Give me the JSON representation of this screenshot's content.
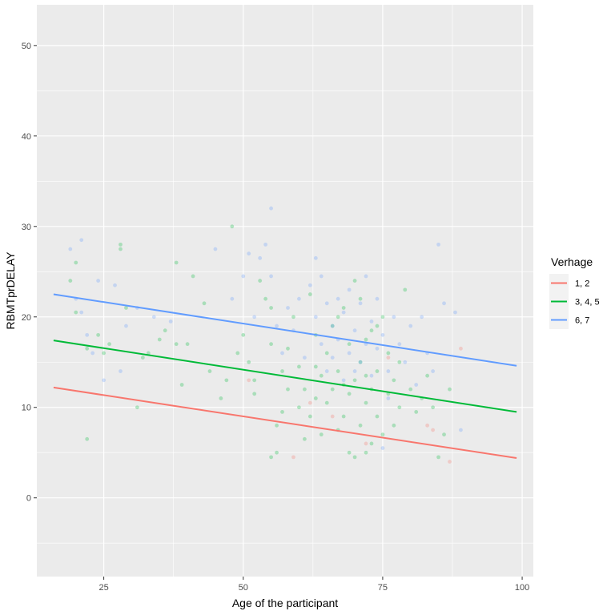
{
  "chart_data": {
    "type": "scatter",
    "title": "",
    "xlabel": "Age of the participant",
    "ylabel": "RBMTprDELAY",
    "xlim": [
      13,
      102
    ],
    "ylim": [
      -8.7,
      54.5
    ],
    "x_ticks": [
      25,
      50,
      75,
      100
    ],
    "x_tick_labels": [
      "25",
      "50",
      "75",
      "100"
    ],
    "y_ticks": [
      0,
      10,
      20,
      30,
      40,
      50
    ],
    "y_tick_labels": [
      "0",
      "10",
      "20",
      "30",
      "40",
      "50"
    ],
    "grid": true,
    "legend": {
      "title": "Verhage",
      "placement": "right"
    },
    "series": [
      {
        "name": "1, 2",
        "color": "#F8766D",
        "trend": {
          "x": [
            16,
            99
          ],
          "y": [
            12.2,
            4.4
          ]
        },
        "points": [
          [
            51,
            13
          ],
          [
            59,
            4.5
          ],
          [
            72,
            6
          ],
          [
            76,
            15.5
          ],
          [
            83,
            8
          ],
          [
            84,
            7.5
          ],
          [
            87,
            4
          ],
          [
            89,
            16.5
          ],
          [
            66,
            9
          ],
          [
            62,
            10.5
          ]
        ]
      },
      {
        "name": "3, 4, 5",
        "color": "#00BA38",
        "trend": {
          "x": [
            16,
            99
          ],
          "y": [
            17.4,
            9.5
          ]
        },
        "points": [
          [
            19,
            24
          ],
          [
            20,
            26
          ],
          [
            20,
            20.5
          ],
          [
            22,
            6.5
          ],
          [
            22,
            16.5
          ],
          [
            24,
            18
          ],
          [
            25,
            16
          ],
          [
            26,
            17
          ],
          [
            28,
            27.5
          ],
          [
            28,
            28
          ],
          [
            29,
            21
          ],
          [
            31,
            10
          ],
          [
            32,
            15.5
          ],
          [
            33,
            16
          ],
          [
            35,
            17.5
          ],
          [
            36,
            18.5
          ],
          [
            38,
            26
          ],
          [
            38,
            17
          ],
          [
            39,
            12.5
          ],
          [
            40,
            17
          ],
          [
            41,
            24.5
          ],
          [
            43,
            21.5
          ],
          [
            44,
            14
          ],
          [
            46,
            11
          ],
          [
            47,
            13
          ],
          [
            48,
            30
          ],
          [
            49,
            16
          ],
          [
            50,
            18
          ],
          [
            51,
            15
          ],
          [
            52,
            13
          ],
          [
            53,
            24
          ],
          [
            54,
            22
          ],
          [
            55,
            4.5
          ],
          [
            55,
            17
          ],
          [
            56,
            5
          ],
          [
            56,
            8
          ],
          [
            57,
            14
          ],
          [
            58,
            12
          ],
          [
            59,
            20
          ],
          [
            60,
            10
          ],
          [
            60,
            14.5
          ],
          [
            61,
            6.5
          ],
          [
            61,
            12
          ],
          [
            62,
            9
          ],
          [
            63,
            11
          ],
          [
            63,
            18
          ],
          [
            64,
            7
          ],
          [
            64,
            13.5
          ],
          [
            65,
            10.5
          ],
          [
            65,
            16
          ],
          [
            66,
            12
          ],
          [
            66,
            19
          ],
          [
            67,
            7.5
          ],
          [
            67,
            14
          ],
          [
            68,
            9
          ],
          [
            68,
            21
          ],
          [
            69,
            5
          ],
          [
            69,
            11.5
          ],
          [
            70,
            4.5
          ],
          [
            70,
            13
          ],
          [
            70,
            24
          ],
          [
            71,
            8
          ],
          [
            71,
            15
          ],
          [
            72,
            5
          ],
          [
            72,
            10.5
          ],
          [
            72,
            17.5
          ],
          [
            73,
            6
          ],
          [
            73,
            12
          ],
          [
            73,
            18.5
          ],
          [
            74,
            9
          ],
          [
            74,
            14
          ],
          [
            75,
            7
          ],
          [
            75,
            20
          ],
          [
            76,
            11.5
          ],
          [
            76,
            16
          ],
          [
            77,
            8
          ],
          [
            77,
            13
          ],
          [
            78,
            10
          ],
          [
            78,
            15
          ],
          [
            79,
            23
          ],
          [
            80,
            12
          ],
          [
            81,
            9.5
          ],
          [
            82,
            11
          ],
          [
            83,
            13.5
          ],
          [
            84,
            10
          ],
          [
            85,
            4.5
          ],
          [
            86,
            7
          ],
          [
            87,
            12
          ],
          [
            55,
            21
          ],
          [
            58,
            16.5
          ],
          [
            62,
            22.5
          ],
          [
            67,
            20
          ],
          [
            69,
            17
          ],
          [
            71,
            22
          ],
          [
            74,
            19
          ],
          [
            52,
            11.5
          ],
          [
            57,
            9.5
          ],
          [
            63,
            14.5
          ],
          [
            68,
            12.5
          ],
          [
            72,
            13.5
          ]
        ]
      },
      {
        "name": "6, 7",
        "color": "#619CFF",
        "trend": {
          "x": [
            16,
            99
          ],
          "y": [
            22.5,
            14.6
          ]
        },
        "points": [
          [
            19,
            27.5
          ],
          [
            20,
            22
          ],
          [
            21,
            28.5
          ],
          [
            21,
            20.5
          ],
          [
            22,
            18
          ],
          [
            23,
            16
          ],
          [
            24,
            24
          ],
          [
            25,
            13
          ],
          [
            27,
            23.5
          ],
          [
            28,
            14
          ],
          [
            29,
            19
          ],
          [
            31,
            21
          ],
          [
            34,
            20
          ],
          [
            37,
            19.5
          ],
          [
            45,
            27.5
          ],
          [
            48,
            22
          ],
          [
            50,
            24.5
          ],
          [
            51,
            27
          ],
          [
            52,
            20
          ],
          [
            53,
            26.5
          ],
          [
            54,
            28
          ],
          [
            55,
            32
          ],
          [
            55,
            24.5
          ],
          [
            56,
            19
          ],
          [
            57,
            16
          ],
          [
            58,
            21
          ],
          [
            59,
            18.5
          ],
          [
            60,
            22
          ],
          [
            61,
            15.5
          ],
          [
            62,
            23.5
          ],
          [
            63,
            26.5
          ],
          [
            63,
            20
          ],
          [
            64,
            17
          ],
          [
            64,
            24.5
          ],
          [
            65,
            14
          ],
          [
            65,
            21.5
          ],
          [
            66,
            19
          ],
          [
            66,
            15.5
          ],
          [
            67,
            22
          ],
          [
            67,
            17.5
          ],
          [
            68,
            13
          ],
          [
            68,
            20.5
          ],
          [
            69,
            16
          ],
          [
            69,
            23
          ],
          [
            70,
            14
          ],
          [
            70,
            18.5
          ],
          [
            71,
            21.5
          ],
          [
            71,
            15
          ],
          [
            72,
            24.5
          ],
          [
            72,
            17
          ],
          [
            73,
            19.5
          ],
          [
            73,
            13.5
          ],
          [
            74,
            22
          ],
          [
            74,
            16.5
          ],
          [
            75,
            18
          ],
          [
            76,
            14
          ],
          [
            77,
            20
          ],
          [
            78,
            17
          ],
          [
            79,
            15
          ],
          [
            80,
            19
          ],
          [
            81,
            12.5
          ],
          [
            82,
            20
          ],
          [
            83,
            16
          ],
          [
            84,
            14
          ],
          [
            85,
            28
          ],
          [
            86,
            21.5
          ],
          [
            88,
            20.5
          ],
          [
            89,
            7.5
          ],
          [
            75,
            5.5
          ],
          [
            76,
            11
          ]
        ]
      }
    ]
  }
}
